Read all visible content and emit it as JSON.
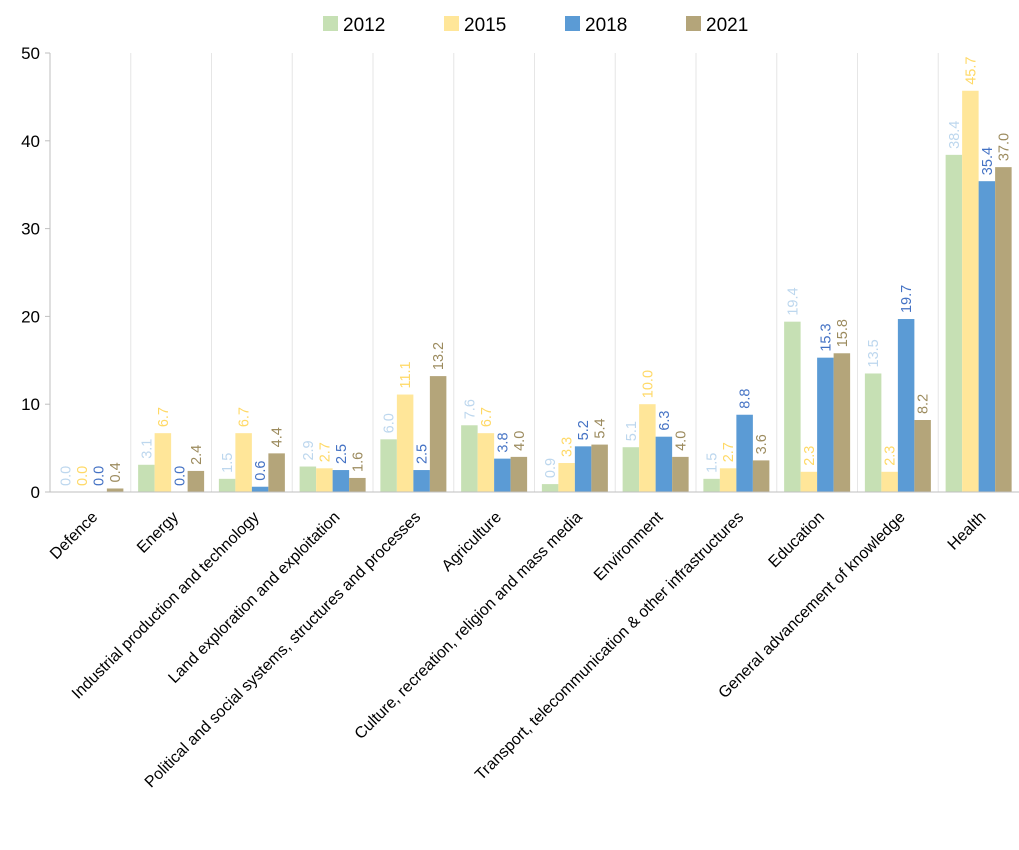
{
  "chart_data": {
    "type": "bar",
    "categories": [
      "Defence",
      "Energy",
      "Industrial production and technology",
      "Land exploration and exploitation",
      "Political and social systems, structures and processes",
      "Agriculture",
      "Culture, recreation, religion and mass media",
      "Environment",
      "Transport, telecommunication & other infrastructures",
      "Education",
      "General advancement of knowledge",
      "Health"
    ],
    "series": [
      {
        "name": "2012",
        "color": "#c6e0b4",
        "labelColor": "#bdd7ee",
        "values": [
          0.0,
          3.1,
          1.5,
          2.9,
          6.0,
          7.6,
          0.9,
          5.1,
          1.5,
          19.4,
          13.5,
          38.4
        ]
      },
      {
        "name": "2015",
        "color": "#ffe699",
        "labelColor": "#ffd966",
        "values": [
          0.0,
          6.7,
          6.7,
          2.7,
          11.1,
          6.7,
          3.3,
          10.0,
          2.7,
          2.3,
          2.3,
          45.7
        ]
      },
      {
        "name": "2018",
        "color": "#5b9bd5",
        "labelColor": "#4472c4",
        "values": [
          0.0,
          0.0,
          0.6,
          2.5,
          2.5,
          3.8,
          5.2,
          6.3,
          8.8,
          15.3,
          19.7,
          35.4
        ]
      },
      {
        "name": "2021",
        "color": "#b4a57a",
        "labelColor": "#9c8b5e",
        "values": [
          0.4,
          2.4,
          4.4,
          1.6,
          13.2,
          4.0,
          5.4,
          4.0,
          3.6,
          15.8,
          8.2,
          37.0
        ]
      }
    ],
    "ylim": [
      0,
      50
    ],
    "yticks": [
      0,
      10,
      20,
      30,
      40,
      50
    ],
    "grid": true,
    "legend_position": "top-center",
    "title": "",
    "xlabel": "",
    "ylabel": ""
  }
}
